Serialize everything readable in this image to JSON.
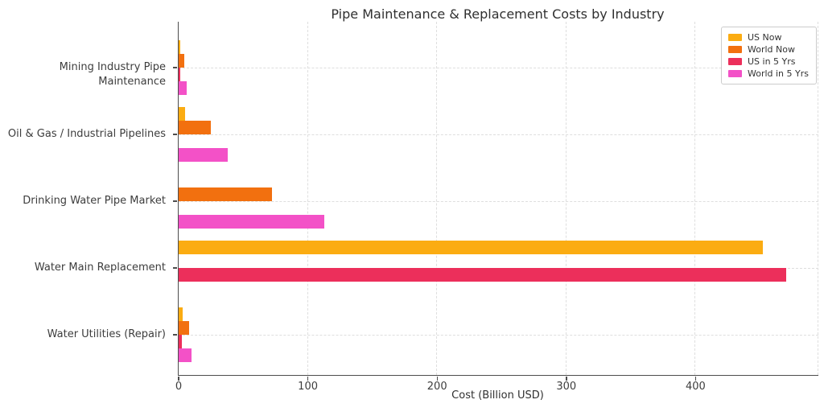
{
  "title": "Pipe Maintenance & Replacement Costs by Industry",
  "chart_data": {
    "type": "bar",
    "orientation": "horizontal",
    "title": "Pipe Maintenance & Replacement Costs by Industry",
    "xlabel": "Cost (Billion USD)",
    "ylabel": "",
    "xlim": [
      0,
      495
    ],
    "xticks": [
      0,
      100,
      200,
      300,
      400
    ],
    "grid": "dashed, horizontal at category centers and vertical at x ticks",
    "legend_position": "upper right",
    "categories": [
      "Mining Industry Pipe Maintenance",
      "Oil & Gas / Industrial Pipelines",
      "Drinking Water Pipe Market",
      "Water Main Replacement",
      "Water Utilities (Repair)"
    ],
    "series": [
      {
        "name": "US Now",
        "color": "#FBAC12",
        "values": [
          1.5,
          5,
          0,
          452,
          3
        ]
      },
      {
        "name": "World Now",
        "color": "#F2700F",
        "values": [
          4.5,
          25,
          72,
          0,
          8
        ]
      },
      {
        "name": "US in 5 Yrs",
        "color": "#EC2F5B",
        "values": [
          1.2,
          0,
          0,
          470,
          2.5
        ]
      },
      {
        "name": "World in 5 Yrs",
        "color": "#F351C7",
        "values": [
          6,
          38,
          113,
          0,
          10
        ]
      }
    ]
  }
}
